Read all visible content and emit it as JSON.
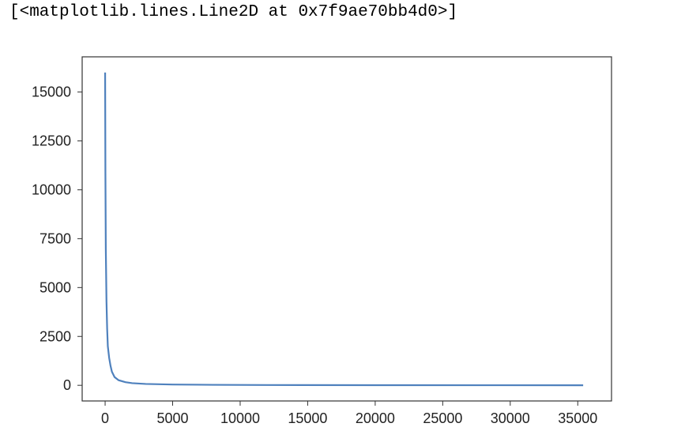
{
  "output": {
    "repr": "[<matplotlib.lines.Line2D at 0x7f9ae70bb4d0>]"
  },
  "colors": {
    "line": "#4f81bd",
    "axes_edge": "#333333",
    "background": "#ffffff"
  },
  "chart_data": {
    "type": "line",
    "title": "",
    "xlabel": "",
    "ylabel": "",
    "xlim": [
      -1700,
      37500
    ],
    "ylim": [
      -800,
      16800
    ],
    "xticks": [
      0,
      5000,
      10000,
      15000,
      20000,
      25000,
      30000,
      35000
    ],
    "yticks": [
      0,
      2500,
      5000,
      7500,
      10000,
      12500,
      15000
    ],
    "grid": false,
    "legend": "none",
    "series": [
      {
        "x": [
          0,
          20,
          50,
          100,
          150,
          200,
          300,
          400,
          500,
          700,
          1000,
          1500,
          2000,
          3000,
          5000,
          8000,
          12000,
          20000,
          28000,
          35400
        ],
        "y": [
          16000,
          11000,
          7000,
          4300,
          2900,
          2000,
          1400,
          1000,
          700,
          420,
          260,
          160,
          110,
          70,
          40,
          25,
          15,
          8,
          5,
          3
        ]
      }
    ]
  }
}
